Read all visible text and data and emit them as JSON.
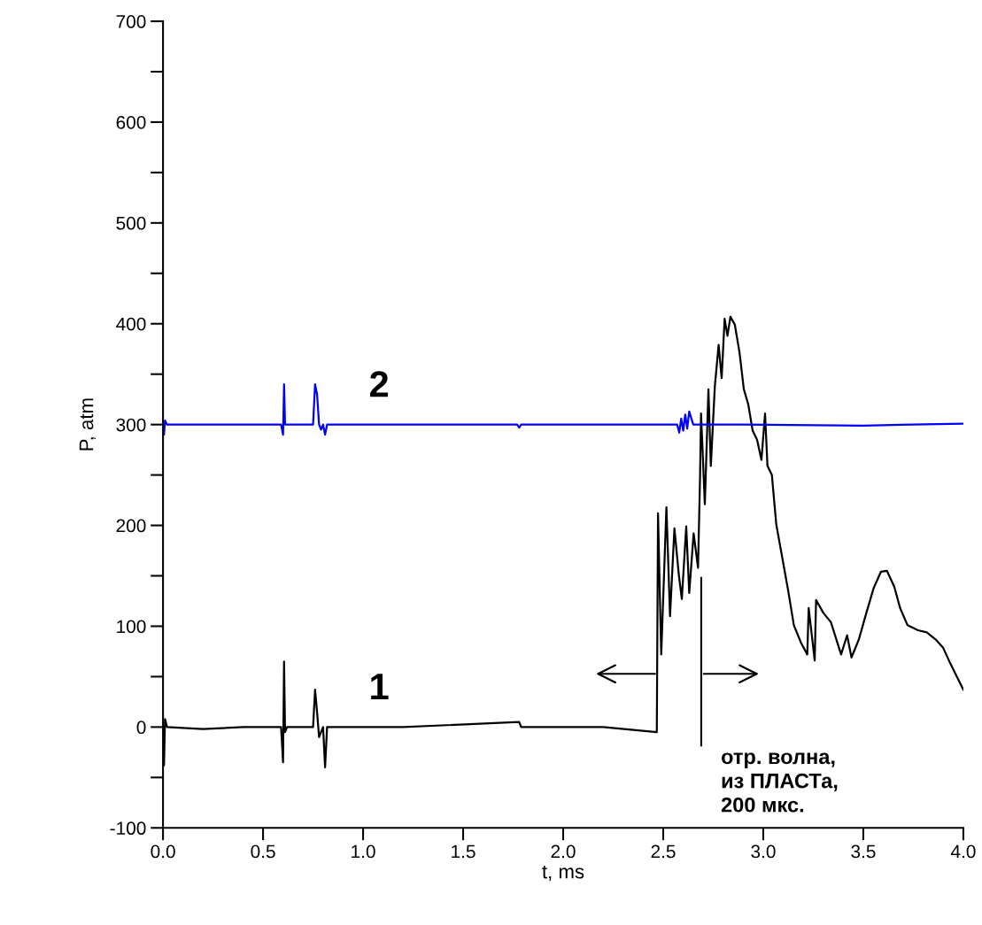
{
  "chart_data": {
    "type": "line",
    "xlabel": "t, ms",
    "ylabel": "P, atm",
    "xlim": [
      0,
      4.0
    ],
    "ylim": [
      -100,
      700
    ],
    "xticks": [
      {
        "value": 0,
        "label": "0.0"
      },
      {
        "value": 0.5,
        "label": "0.5"
      },
      {
        "value": 1,
        "label": "1.0"
      },
      {
        "value": 1.5,
        "label": "1.5"
      },
      {
        "value": 2,
        "label": "2.0"
      },
      {
        "value": 2.5,
        "label": "2.5"
      },
      {
        "value": 3,
        "label": "3.0"
      },
      {
        "value": 3.5,
        "label": "3.5"
      },
      {
        "value": 4,
        "label": "4.0"
      }
    ],
    "yticks": [
      -100,
      {
        "value": -50,
        "label": null
      },
      0,
      {
        "value": 50,
        "label": null
      },
      100,
      {
        "value": 150,
        "label": null
      },
      200,
      {
        "value": 250,
        "label": null
      },
      300,
      {
        "value": 350,
        "label": null
      },
      400,
      {
        "value": 450,
        "label": null
      },
      500,
      {
        "value": 550,
        "label": null
      },
      600,
      {
        "value": 650,
        "label": null
      },
      700
    ],
    "grid": false,
    "legend": false,
    "marker": "none",
    "line_style": "solid",
    "series": [
      {
        "name": "1",
        "color": "#000000",
        "x": [
          0,
          0.005,
          0.01,
          0.02,
          0.2,
          0.4,
          0.59,
          0.6,
          0.605,
          0.61,
          0.62,
          0.75,
          0.76,
          0.77,
          0.78,
          0.8,
          0.81,
          0.82,
          1.2,
          1.78,
          1.79,
          2.2,
          2.468,
          2.474,
          2.49,
          2.516,
          2.534,
          2.556,
          2.578,
          2.593,
          2.615,
          2.63,
          2.652,
          2.674,
          2.684,
          2.689,
          2.708,
          2.726,
          2.738,
          2.758,
          2.777,
          2.792,
          2.807,
          2.821,
          2.836,
          2.858,
          2.881,
          2.903,
          2.925,
          2.947,
          2.969,
          2.991,
          3.009,
          3.021,
          3.043,
          3.065,
          3.095,
          3.124,
          3.153,
          3.19,
          3.22,
          3.227,
          3.257,
          3.264,
          3.301,
          3.338,
          3.389,
          3.419,
          3.441,
          3.478,
          3.515,
          3.552,
          3.588,
          3.618,
          3.655,
          3.684,
          3.721,
          3.773,
          3.817,
          3.861,
          3.898,
          3.935,
          4.0
        ],
        "values": [
          0,
          -38,
          8,
          0,
          -2,
          0,
          0,
          -35,
          65,
          -5,
          0,
          0,
          37,
          15,
          -10,
          0,
          -40,
          0,
          0,
          5,
          0,
          0,
          -5,
          212,
          72,
          218,
          110,
          197,
          151,
          127,
          199,
          133,
          192,
          158,
          247,
          311,
          221,
          335,
          259,
          338,
          379,
          346,
          405,
          388,
          407,
          399,
          372,
          335,
          320,
          294,
          285,
          265,
          311,
          259,
          250,
          201,
          168,
          136,
          101,
          83,
          72,
          118,
          66,
          126,
          113,
          104,
          72,
          91,
          69,
          87,
          113,
          138,
          154,
          155,
          139,
          118,
          101,
          96,
          94,
          87,
          79,
          63,
          37
        ]
      },
      {
        "name": "2",
        "color": "#0000ff",
        "x": [
          0,
          0.005,
          0.01,
          0.02,
          0.5,
          0.59,
          0.6,
          0.605,
          0.61,
          0.62,
          0.75,
          0.76,
          0.77,
          0.78,
          0.79,
          0.8,
          0.81,
          0.82,
          1.77,
          1.78,
          1.79,
          2.5,
          2.57,
          2.58,
          2.59,
          2.6,
          2.61,
          2.62,
          2.63,
          2.65,
          2.9,
          3.5,
          4.0
        ],
        "values": [
          300,
          290,
          304,
          300,
          300,
          300,
          290,
          340,
          300,
          300,
          300,
          340,
          330,
          300,
          295,
          300,
          290,
          300,
          300,
          297,
          300,
          300,
          300,
          292,
          306,
          294,
          310,
          296,
          313,
          300,
          300,
          299,
          301
        ]
      }
    ],
    "annotations": [
      "отр. волна,\nиз ПЛАСТа,\n200 мкс."
    ]
  }
}
